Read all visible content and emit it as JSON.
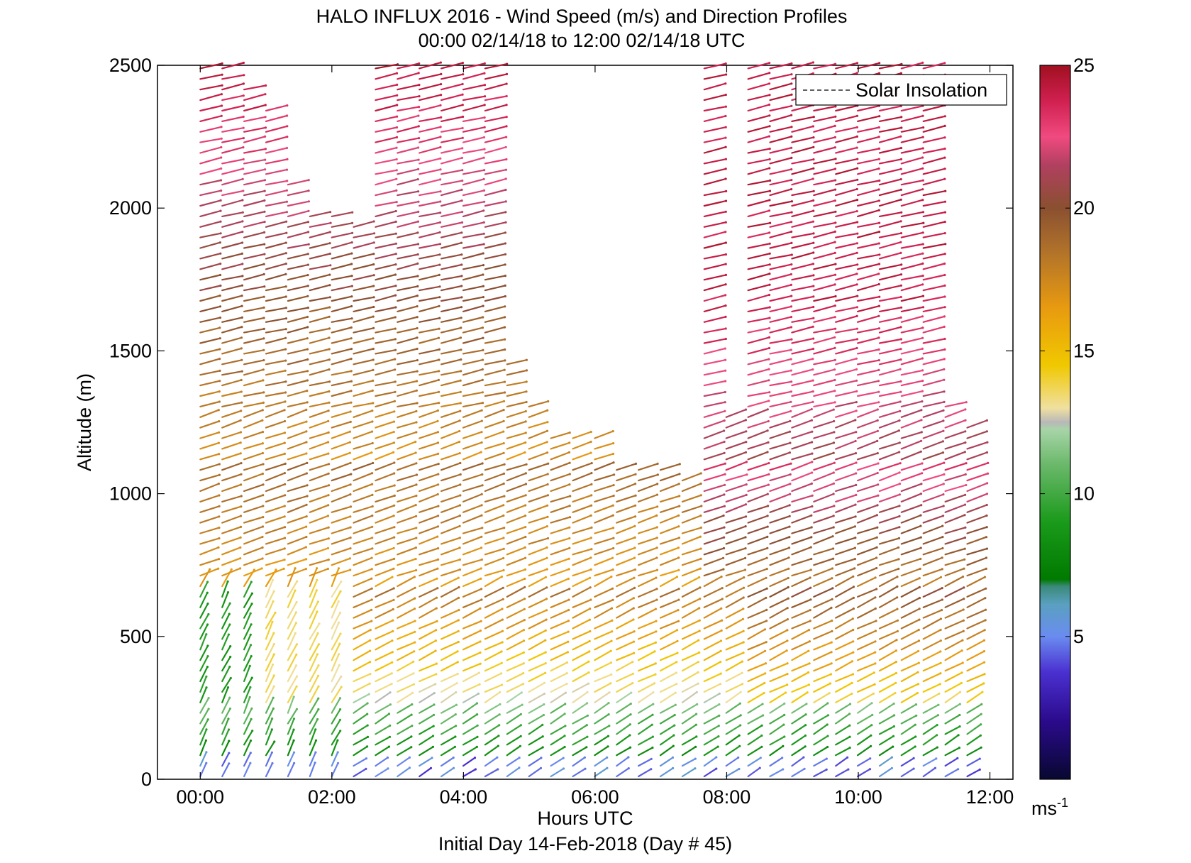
{
  "chart_data": {
    "type": "wind-barb-profile",
    "title": "HALO INFLUX 2016 - Wind Speed (m/s) and Direction Profiles",
    "subtitle": "00:00 02/14/18 to 12:00 02/14/18  UTC",
    "footer": "Initial Day 14-Feb-2018 (Day # 45)",
    "xlabel": "Hours UTC",
    "ylabel": "Altitude (m)",
    "x_ticks": [
      "00:00",
      "02:00",
      "04:00",
      "06:00",
      "08:00",
      "10:00",
      "12:00"
    ],
    "xlim_hours": [
      -0.65,
      12.35
    ],
    "y_ticks": [
      "0",
      "500",
      "1000",
      "1500",
      "2000",
      "2500"
    ],
    "ylim": [
      0,
      2500
    ],
    "colorbar": {
      "range": [
        0,
        25
      ],
      "ticks": [
        "5",
        "10",
        "15",
        "20",
        "25"
      ],
      "unit": "ms",
      "unit_exponent": "-1"
    },
    "legend": {
      "entries": [
        "Solar Insolation"
      ],
      "placement": "top-right"
    },
    "profiles": {
      "start_hour": 0.0,
      "end_hour": 11.75,
      "interval_hours": 0.333,
      "altitude_step_m": 37,
      "coverage": [
        {
          "from_hour": 0.0,
          "to_hour": 0.4,
          "max_alt_m": 2490
        },
        {
          "from_hour": 0.4,
          "to_hour": 0.75,
          "max_alt_m": 2420
        },
        {
          "from_hour": 0.75,
          "to_hour": 1.25,
          "max_alt_m": 2370
        },
        {
          "from_hour": 1.25,
          "to_hour": 1.6,
          "max_alt_m": 2100
        },
        {
          "from_hour": 1.6,
          "to_hour": 2.1,
          "max_alt_m": 2000
        },
        {
          "from_hour": 2.1,
          "to_hour": 2.45,
          "max_alt_m": 1960
        },
        {
          "from_hour": 2.45,
          "to_hour": 4.45,
          "max_alt_m": 2500
        },
        {
          "from_hour": 4.45,
          "to_hour": 4.8,
          "max_alt_m": 1480
        },
        {
          "from_hour": 4.8,
          "to_hour": 5.1,
          "max_alt_m": 1320
        },
        {
          "from_hour": 5.1,
          "to_hour": 6.1,
          "max_alt_m": 1200
        },
        {
          "from_hour": 6.1,
          "to_hour": 7.1,
          "max_alt_m": 1100
        },
        {
          "from_hour": 7.1,
          "to_hour": 7.45,
          "max_alt_m": 1050
        },
        {
          "from_hour": 7.45,
          "to_hour": 7.8,
          "max_alt_m": 2500
        },
        {
          "from_hour": 7.8,
          "to_hour": 8.15,
          "max_alt_m": 1300
        },
        {
          "from_hour": 8.15,
          "to_hour": 9.1,
          "max_alt_m": 2500
        },
        {
          "from_hour": 9.1,
          "to_hour": 11.1,
          "max_alt_m": 2500
        },
        {
          "from_hour": 11.1,
          "to_hour": 11.45,
          "max_alt_m": 1320
        },
        {
          "from_hour": 11.45,
          "to_hour": 11.8,
          "max_alt_m": 1250
        }
      ]
    }
  }
}
